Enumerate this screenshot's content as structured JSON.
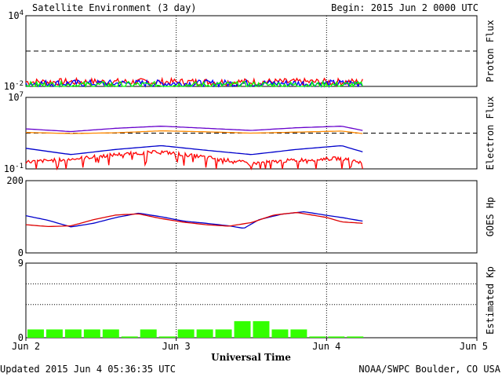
{
  "header": {
    "title": "Satellite Environment (3 day)",
    "begin": "Begin:  2015 Jun 2 0000 UTC"
  },
  "footer": {
    "updated": "Updated 2015 Jun  4 05:36:35 UTC",
    "credit": "NOAA/SWPC Boulder, CO USA"
  },
  "chart_data": [
    {
      "type": "line",
      "ylabel": "Proton Flux",
      "yscale": "log",
      "ylim": [
        0.01,
        10000
      ],
      "ytick_base": "10",
      "yticks": [
        {
          "base": "10",
          "exp": "4",
          "value": 10000
        },
        {
          "base": "10",
          "exp": "-2",
          "value": 0.01
        }
      ],
      "threshold": 10,
      "series": [
        {
          "color": "#ff0000",
          "level": 0.024
        },
        {
          "color": "#0000ff",
          "level": 0.018
        },
        {
          "color": "#00ff00",
          "level": 0.013
        }
      ]
    },
    {
      "type": "line",
      "ylabel": "Electron Flux",
      "yscale": "log",
      "ylim": [
        0.1,
        10000000
      ],
      "yticks": [
        {
          "base": "10",
          "exp": "7",
          "value": 10000000
        },
        {
          "base": "10",
          "exp": "-1",
          "value": 0.1
        }
      ],
      "threshold": 1000,
      "series": [
        {
          "color": "#6600cc",
          "x": [
            0,
            0.3,
            0.6,
            0.9,
            1.2,
            1.5,
            1.8,
            2.1,
            2.24
          ],
          "y": [
            3000,
            1500,
            3500,
            6000,
            3500,
            2000,
            4000,
            6000,
            2000
          ]
        },
        {
          "color": "#ff8800",
          "x": [
            0,
            0.3,
            0.6,
            0.9,
            1.2,
            1.5,
            1.8,
            2.1,
            2.24
          ],
          "y": [
            1200,
            900,
            1100,
            1800,
            1400,
            1000,
            1300,
            1700,
            900
          ]
        },
        {
          "color": "#0000cc",
          "x": [
            0,
            0.3,
            0.6,
            0.9,
            1.2,
            1.5,
            1.8,
            2.1,
            2.24
          ],
          "y": [
            20,
            4,
            15,
            40,
            12,
            4,
            15,
            40,
            8
          ]
        },
        {
          "color": "#ff0000",
          "x": [
            0,
            0.3,
            0.6,
            0.9,
            1.2,
            1.5,
            1.8,
            2.1,
            2.24
          ],
          "y": [
            0.6,
            1.2,
            4,
            8,
            2,
            0.4,
            1,
            1.5,
            0.5
          ]
        }
      ]
    },
    {
      "type": "line",
      "ylabel": "GOES Hp",
      "ylim": [
        0,
        200
      ],
      "yticks": [
        {
          "label": "200",
          "value": 200
        },
        {
          "label": "0",
          "value": 0
        }
      ],
      "series": [
        {
          "color": "#0000cc",
          "x": [
            0,
            0.15,
            0.3,
            0.45,
            0.6,
            0.75,
            0.9,
            1.05,
            1.2,
            1.35,
            1.45,
            1.55,
            1.7,
            1.85,
            2.0,
            2.1,
            2.24
          ],
          "y": [
            103,
            90,
            72,
            82,
            98,
            110,
            100,
            88,
            82,
            75,
            68,
            92,
            107,
            114,
            104,
            98,
            88
          ]
        },
        {
          "color": "#dd0000",
          "x": [
            0,
            0.15,
            0.3,
            0.45,
            0.6,
            0.75,
            0.9,
            1.05,
            1.2,
            1.35,
            1.5,
            1.65,
            1.8,
            2.0,
            2.1,
            2.24
          ],
          "y": [
            78,
            73,
            75,
            92,
            105,
            108,
            95,
            85,
            78,
            74,
            84,
            105,
            112,
            98,
            86,
            82
          ]
        }
      ]
    },
    {
      "type": "bar",
      "ylabel": "Estimated Kp",
      "ylim": [
        0,
        9
      ],
      "yticks": [
        {
          "label": "9",
          "value": 9
        },
        {
          "label": "0",
          "value": 0
        }
      ],
      "gridlines": [
        9,
        6.5,
        4
      ],
      "bar_color": "#33ff00",
      "x_start": [
        0,
        0.125,
        0.25,
        0.375,
        0.5,
        0.625,
        0.75,
        0.875,
        1.0,
        1.125,
        1.25,
        1.375,
        1.5,
        1.625,
        1.75,
        1.875,
        2.0,
        2.125
      ],
      "values": [
        1,
        1,
        1,
        1,
        1,
        0.15,
        1,
        0.15,
        1,
        1,
        1,
        2,
        2,
        1,
        1,
        0.15,
        0.15,
        0.15
      ]
    }
  ],
  "xaxis": {
    "label": "Universal Time",
    "ticks": [
      "Jun 2",
      "Jun 3",
      "Jun 4",
      "Jun 5"
    ],
    "xlim": [
      0,
      3
    ]
  }
}
